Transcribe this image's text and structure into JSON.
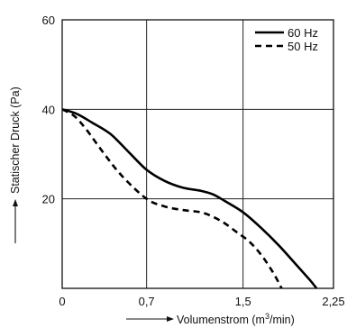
{
  "chart_data": {
    "type": "line",
    "x_label": "Volumenstrom (m³/min)",
    "x_label_parts": {
      "before": "Volumenstrom (m",
      "superscript": "3",
      "after": "/min)"
    },
    "y_label": "Statischer Druck (Pa)",
    "x_range": [
      0,
      2.25
    ],
    "y_range": [
      0,
      60
    ],
    "x_ticks": [
      {
        "value": 0,
        "label": "0"
      },
      {
        "value": 0.7,
        "label": "0,7"
      },
      {
        "value": 1.5,
        "label": "1,5"
      },
      {
        "value": 2.25,
        "label": "2,25"
      }
    ],
    "y_ticks": [
      {
        "value": 20,
        "label": "20"
      },
      {
        "value": 40,
        "label": "40"
      },
      {
        "value": 60,
        "label": "60"
      }
    ],
    "grid": true,
    "legend_position": "top-right",
    "series": [
      {
        "name": "60 Hz",
        "style": "solid",
        "color": "#000000",
        "points": [
          [
            0,
            40
          ],
          [
            0.12,
            39.0
          ],
          [
            0.25,
            37.0
          ],
          [
            0.4,
            34.5
          ],
          [
            0.55,
            30.5
          ],
          [
            0.7,
            26.5
          ],
          [
            0.85,
            24.0
          ],
          [
            1.0,
            22.5
          ],
          [
            1.15,
            21.8
          ],
          [
            1.25,
            21.0
          ],
          [
            1.35,
            19.5
          ],
          [
            1.5,
            17.0
          ],
          [
            1.65,
            13.5
          ],
          [
            1.8,
            9.5
          ],
          [
            1.95,
            5.0
          ],
          [
            2.05,
            2.0
          ],
          [
            2.11,
            0
          ]
        ]
      },
      {
        "name": "50 Hz",
        "style": "dashed",
        "color": "#000000",
        "points": [
          [
            0,
            40
          ],
          [
            0.1,
            38.5
          ],
          [
            0.2,
            35.5
          ],
          [
            0.35,
            30.0
          ],
          [
            0.5,
            25.0
          ],
          [
            0.7,
            20.0
          ],
          [
            0.85,
            18.3
          ],
          [
            1.0,
            17.5
          ],
          [
            1.15,
            17.0
          ],
          [
            1.25,
            16.0
          ],
          [
            1.35,
            14.5
          ],
          [
            1.45,
            12.5
          ],
          [
            1.55,
            10.5
          ],
          [
            1.65,
            7.5
          ],
          [
            1.75,
            3.5
          ],
          [
            1.82,
            0
          ]
        ]
      }
    ]
  }
}
